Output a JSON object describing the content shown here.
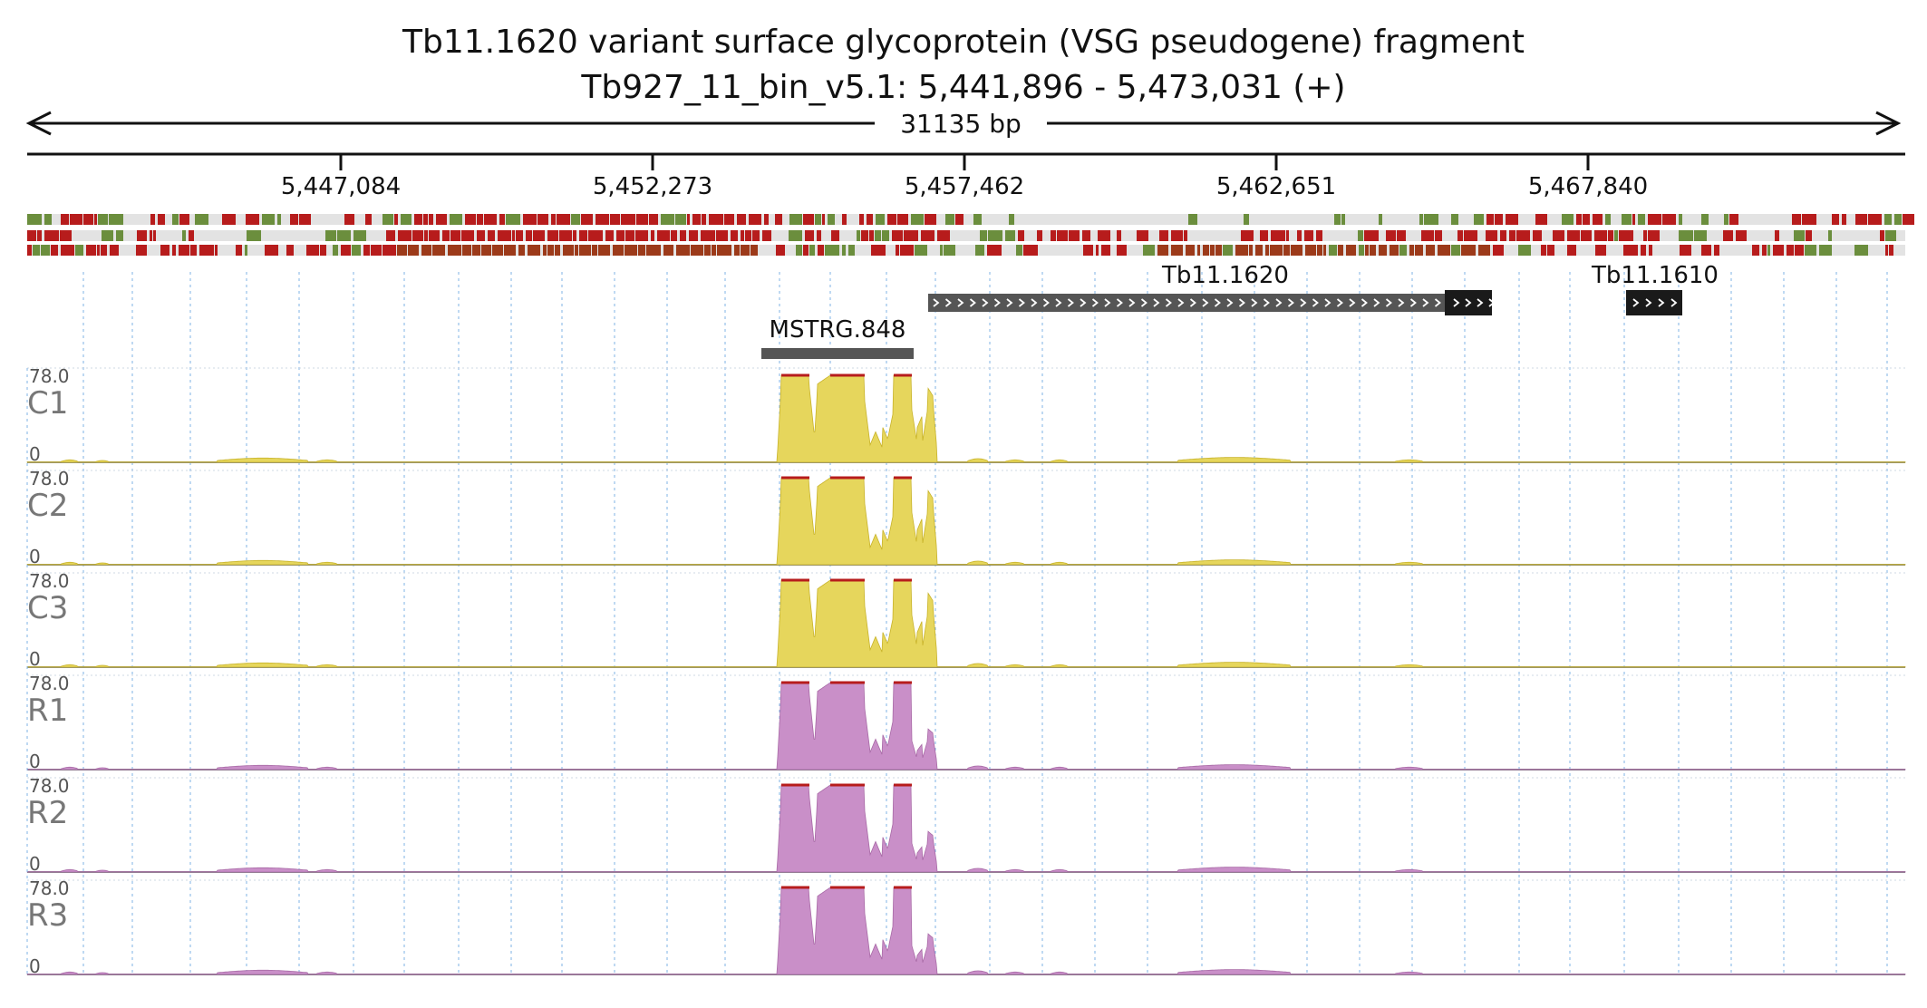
{
  "title": {
    "line1": "Tb11.1620  variant surface glycoprotein (VSG  pseudogene)  fragment",
    "line2": "Tb927_11_bin_v5.1: 5,441,896 - 5,473,031 (+)"
  },
  "ruler": {
    "length_label": "31135 bp",
    "ticks": [
      "5,447,084",
      "5,452,273",
      "5,457,462",
      "5,462,651",
      "5,467,840"
    ]
  },
  "colors": {
    "coverage_c": "#e6d65c",
    "coverage_r": "#c98fc8",
    "seq_red": "#b71c1c",
    "seq_green": "#6b8e3d",
    "gene": "#333333",
    "grid": "#7fb3e6"
  },
  "features": [
    {
      "name": "Tb11.1620",
      "label": "Tb11.1620"
    },
    {
      "name": "Tb11.1610",
      "label": "Tb11.1610"
    },
    {
      "name": "MSTRG.848",
      "label": "MSTRG.848"
    }
  ],
  "tracks": [
    {
      "name": "C1",
      "max_label": "78.0",
      "min_label": "0",
      "group": "C"
    },
    {
      "name": "C2",
      "max_label": "78.0",
      "min_label": "0",
      "group": "C"
    },
    {
      "name": "C3",
      "max_label": "78.0",
      "min_label": "0",
      "group": "C"
    },
    {
      "name": "R1",
      "max_label": "78.0",
      "min_label": "0",
      "group": "R"
    },
    {
      "name": "R2",
      "max_label": "78.0",
      "min_label": "0",
      "group": "R"
    },
    {
      "name": "R3",
      "max_label": "78.0",
      "min_label": "0",
      "group": "R"
    }
  ]
}
